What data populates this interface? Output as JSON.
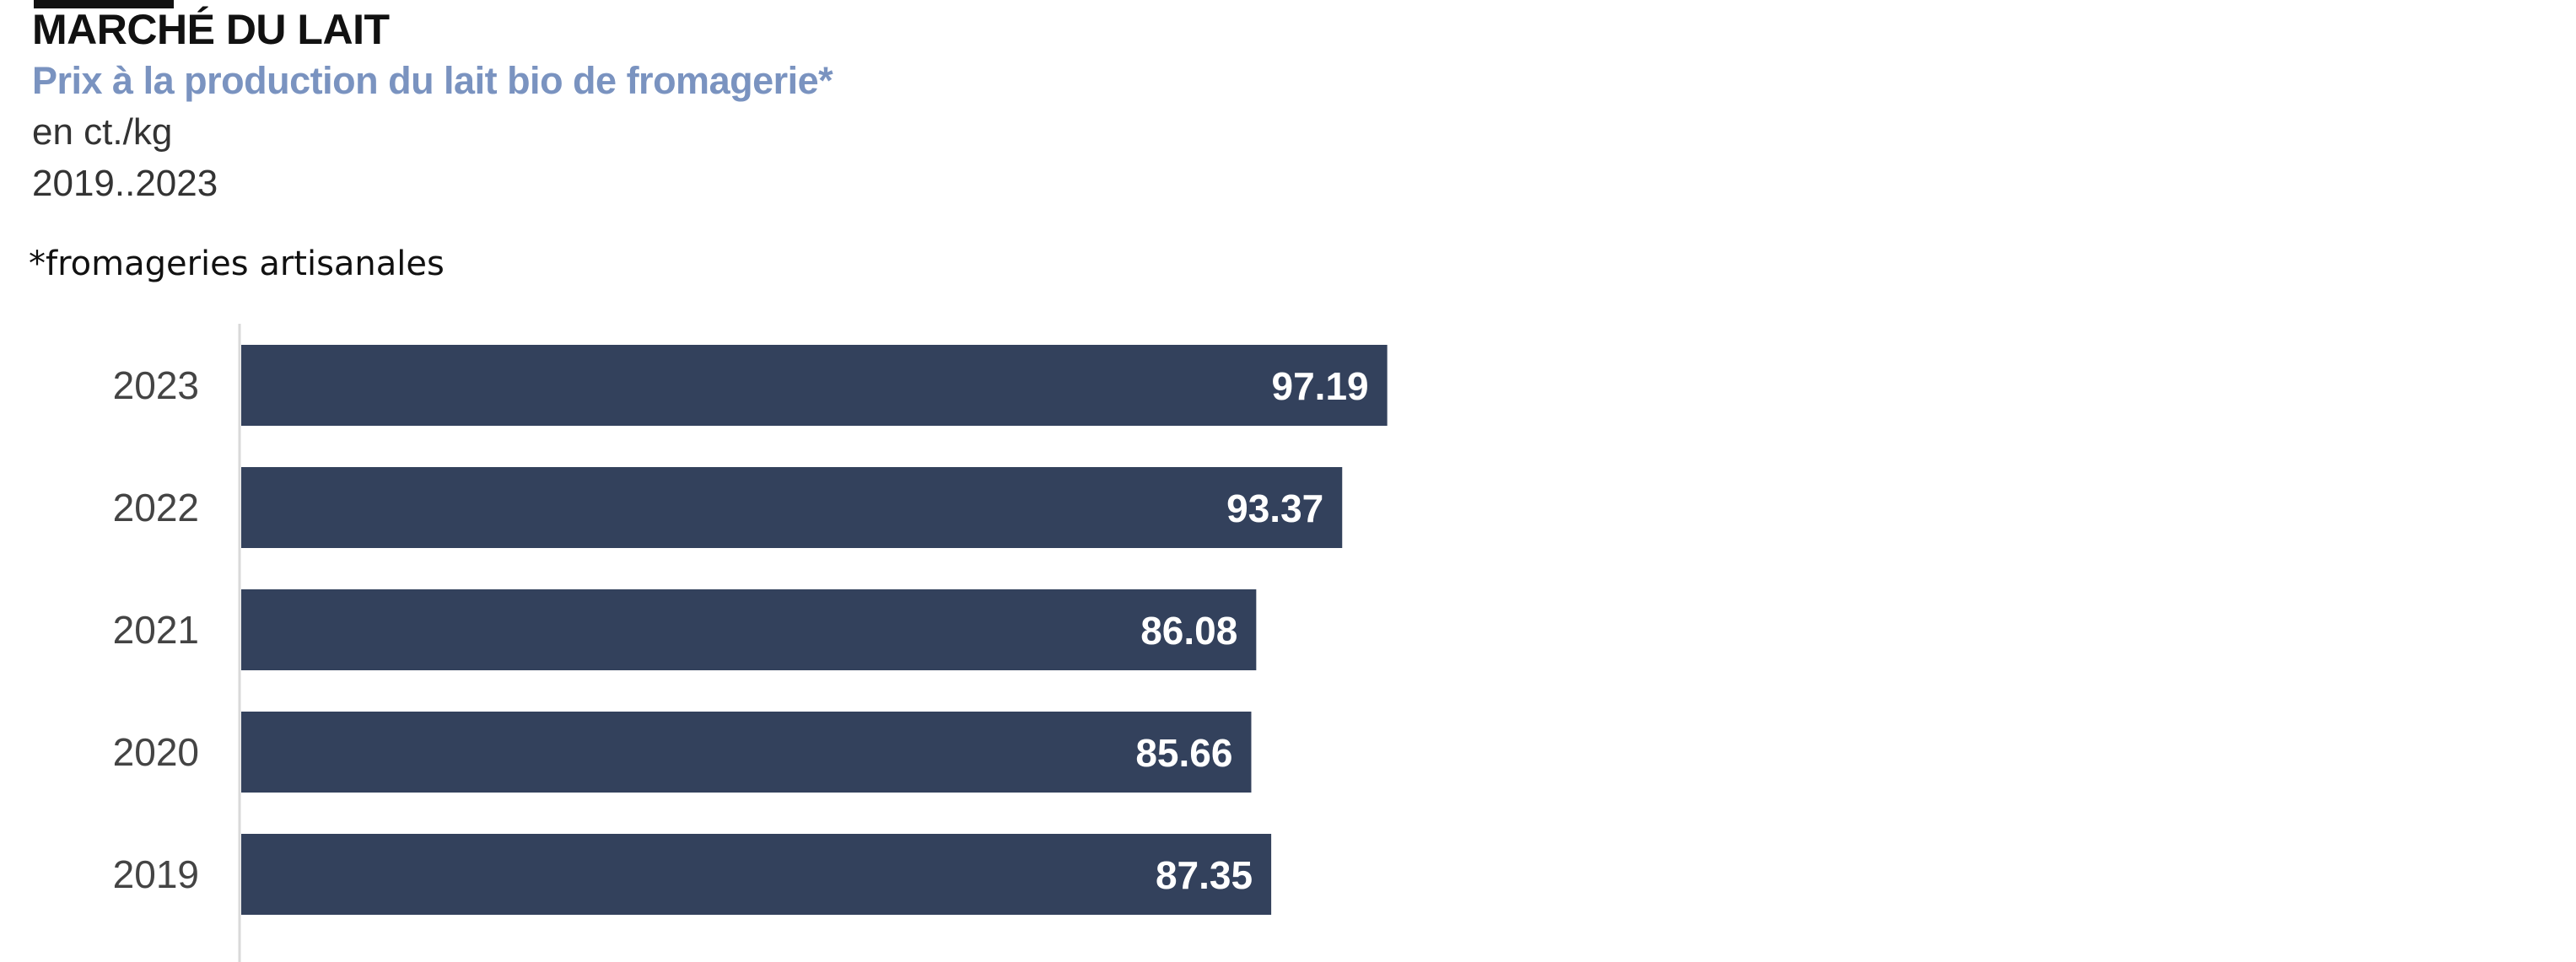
{
  "header": {
    "title": "MARCHÉ DU LAIT",
    "subtitle": "Prix à la production du lait bio de fromagerie*",
    "unit": "en ct./kg",
    "period": "2019..2023",
    "footnote": "*fromageries artisanales"
  },
  "colors": {
    "bar": "#33415c",
    "subtitle": "#7a93c0",
    "label": "#ffffff",
    "axis": "#d9d9d9"
  },
  "chart_data": {
    "type": "bar",
    "orientation": "horizontal",
    "categories": [
      "2023",
      "2022",
      "2021",
      "2020",
      "2019"
    ],
    "values": [
      97.19,
      93.37,
      86.08,
      85.66,
      87.35
    ],
    "title": "Prix à la production du lait bio de fromagerie*",
    "xlabel": "",
    "ylabel": "",
    "xlim": [
      0,
      194
    ],
    "grid": false,
    "legend": "none",
    "data_labels": true
  }
}
